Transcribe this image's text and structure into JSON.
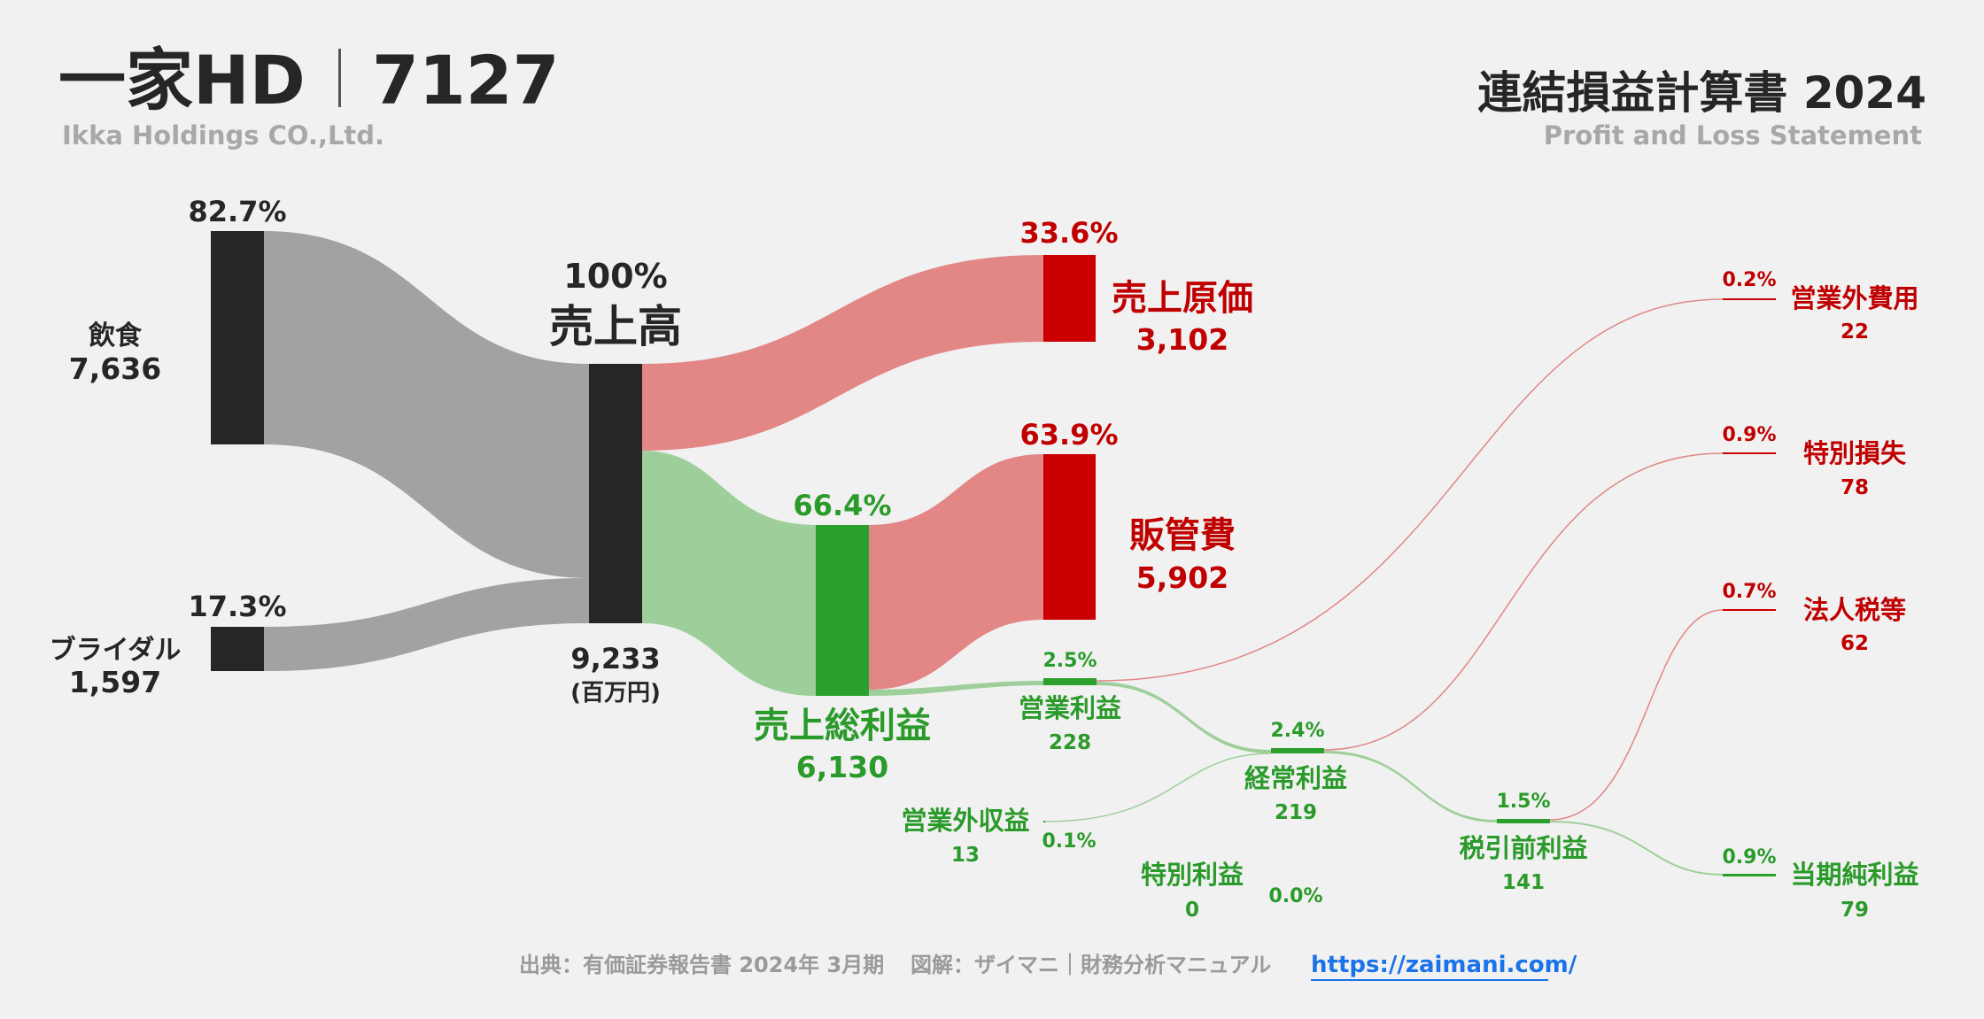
{
  "header": {
    "company": "一家HD",
    "ticker": "7127",
    "company_en": "Ikka Holdings CO.,Ltd.",
    "statement": "連結損益計算書 2024",
    "statement_en": "Profit and Loss Statement"
  },
  "footer": {
    "source": "出典：有価証券報告書 2024年 3月期",
    "credit": "図解：ザイマニ｜財務分析マニュアル",
    "link": "https://zaimani.com/"
  },
  "colors": {
    "neutral_node": "#262626",
    "neutral_flow": "#a2a2a2",
    "cost_node": "#cc0000",
    "cost_flow": "#e28686",
    "profit_node": "#2ca02c",
    "profit_flow": "#9ecf9b",
    "cost_text": "#c00000",
    "profit_text": "#2a9a2a",
    "neutral_text": "#262626",
    "link": "#1a73e8"
  },
  "chart_data": {
    "type": "sankey",
    "unit": "(百万円)",
    "nodes": [
      {
        "id": "inshoku",
        "name": "飲食",
        "value": "7,636",
        "pct": "82.7%",
        "kind": "neutral"
      },
      {
        "id": "bridal",
        "name": "ブライダル",
        "value": "1,597",
        "pct": "17.3%",
        "kind": "neutral"
      },
      {
        "id": "revenue",
        "name": "売上高",
        "value": "9,233",
        "pct": "100%",
        "kind": "neutral"
      },
      {
        "id": "cogs",
        "name": "売上原価",
        "value": "3,102",
        "pct": "33.6%",
        "kind": "cost"
      },
      {
        "id": "gross",
        "name": "売上総利益",
        "value": "6,130",
        "pct": "66.4%",
        "kind": "profit"
      },
      {
        "id": "sga",
        "name": "販管費",
        "value": "5,902",
        "pct": "63.9%",
        "kind": "cost"
      },
      {
        "id": "op",
        "name": "営業利益",
        "value": "228",
        "pct": "2.5%",
        "kind": "profit"
      },
      {
        "id": "nonop_inc",
        "name": "営業外収益",
        "value": "13",
        "pct": "0.1%",
        "kind": "profit"
      },
      {
        "id": "nonop_exp",
        "name": "営業外費用",
        "value": "22",
        "pct": "0.2%",
        "kind": "cost"
      },
      {
        "id": "ordinary",
        "name": "経常利益",
        "value": "219",
        "pct": "2.4%",
        "kind": "profit"
      },
      {
        "id": "extra_inc",
        "name": "特別利益",
        "value": "0",
        "pct": "0.0%",
        "kind": "profit"
      },
      {
        "id": "extra_loss",
        "name": "特別損失",
        "value": "78",
        "pct": "0.9%",
        "kind": "cost"
      },
      {
        "id": "pretax",
        "name": "税引前利益",
        "value": "141",
        "pct": "1.5%",
        "kind": "profit"
      },
      {
        "id": "tax",
        "name": "法人税等",
        "value": "62",
        "pct": "0.7%",
        "kind": "cost"
      },
      {
        "id": "net",
        "name": "当期純利益",
        "value": "79",
        "pct": "0.9%",
        "kind": "profit"
      }
    ],
    "links": [
      {
        "source": "inshoku",
        "target": "revenue",
        "value": 7636
      },
      {
        "source": "bridal",
        "target": "revenue",
        "value": 1597
      },
      {
        "source": "revenue",
        "target": "cogs",
        "value": 3102
      },
      {
        "source": "revenue",
        "target": "gross",
        "value": 6130
      },
      {
        "source": "gross",
        "target": "sga",
        "value": 5902
      },
      {
        "source": "gross",
        "target": "op",
        "value": 228
      },
      {
        "source": "op",
        "target": "nonop_exp",
        "value": 22
      },
      {
        "source": "op",
        "target": "ordinary",
        "value": 206
      },
      {
        "source": "nonop_inc",
        "target": "ordinary",
        "value": 13
      },
      {
        "source": "ordinary",
        "target": "extra_loss",
        "value": 78
      },
      {
        "source": "ordinary",
        "target": "pretax",
        "value": 141
      },
      {
        "source": "extra_inc",
        "target": "pretax",
        "value": 0
      },
      {
        "source": "pretax",
        "target": "tax",
        "value": 62
      },
      {
        "source": "pretax",
        "target": "net",
        "value": 79
      }
    ]
  }
}
